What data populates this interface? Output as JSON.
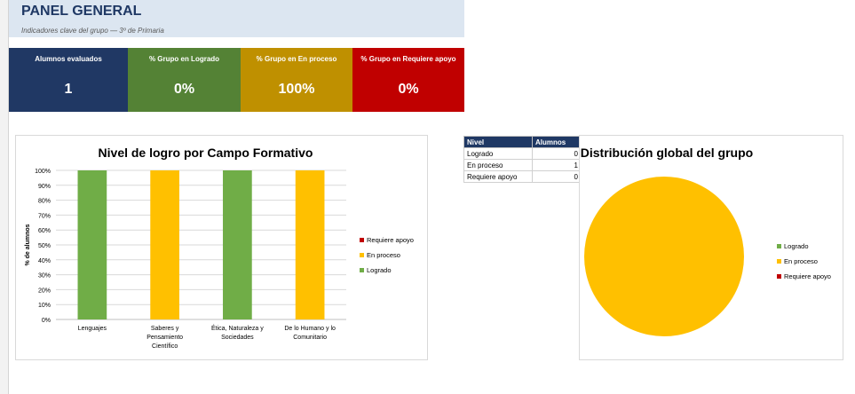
{
  "header": {
    "title": "PANEL GENERAL",
    "subtitle": "Indicadores clave del grupo — 3º de Primaria"
  },
  "kpis": [
    {
      "label": "Alumnos evaluados",
      "value": "1",
      "color": "#203864"
    },
    {
      "label": "% Grupo en Logrado",
      "value": "0%",
      "color": "#548235"
    },
    {
      "label": "% Grupo en En proceso",
      "value": "100%",
      "color": "#bf9000"
    },
    {
      "label": "% Grupo en Requiere apoyo",
      "value": "0%",
      "color": "#c00000"
    }
  ],
  "summary_table": {
    "headers": [
      "Nivel",
      "Alumnos"
    ],
    "rows": [
      {
        "nivel": "Logrado",
        "alumnos": "0"
      },
      {
        "nivel": "En proceso",
        "alumnos": "1"
      },
      {
        "nivel": "Requiere apoyo",
        "alumnos": "0"
      }
    ]
  },
  "chart_data": [
    {
      "type": "bar",
      "title": "Nivel de logro por Campo Formativo",
      "ylabel": "% de alumnos",
      "xlabel": "",
      "ylim": [
        0,
        100
      ],
      "yticks": [
        "0%",
        "10%",
        "20%",
        "30%",
        "40%",
        "50%",
        "60%",
        "70%",
        "80%",
        "90%",
        "100%"
      ],
      "categories": [
        [
          "Lenguajes"
        ],
        [
          "Saberes y",
          "Pensamiento",
          "Científico"
        ],
        [
          "Ética, Naturaleza y",
          "Sociedades"
        ],
        [
          "De lo Humano y lo",
          "Comunitario"
        ]
      ],
      "stacked": true,
      "grid": true,
      "legend_position": "right",
      "series": [
        {
          "name": "Logrado",
          "color": "#70ad47",
          "values": [
            100,
            0,
            100,
            0
          ]
        },
        {
          "name": "En proceso",
          "color": "#ffc000",
          "values": [
            0,
            100,
            0,
            100
          ]
        },
        {
          "name": "Requiere apoyo",
          "color": "#c00000",
          "values": [
            0,
            0,
            0,
            0
          ]
        }
      ],
      "legend_order": [
        "Requiere apoyo",
        "En proceso",
        "Logrado"
      ]
    },
    {
      "type": "pie",
      "title": "Distribución global del grupo",
      "legend_position": "right",
      "series": [
        {
          "name": "Logrado",
          "color": "#70ad47",
          "value": 0
        },
        {
          "name": "En proceso",
          "color": "#ffc000",
          "value": 1
        },
        {
          "name": "Requiere apoyo",
          "color": "#c00000",
          "value": 0
        }
      ]
    }
  ]
}
